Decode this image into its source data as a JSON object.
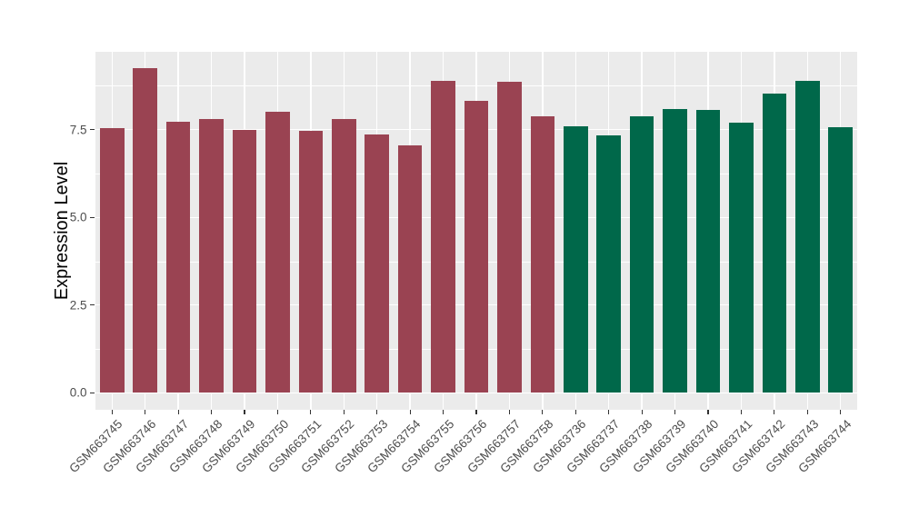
{
  "chart_data": {
    "type": "bar",
    "title": "",
    "xlabel": "",
    "ylabel": "Expression Level",
    "categories": [
      "GSM663745",
      "GSM663746",
      "GSM663747",
      "GSM663748",
      "GSM663749",
      "GSM663750",
      "GSM663751",
      "GSM663752",
      "GSM663753",
      "GSM663754",
      "GSM663755",
      "GSM663756",
      "GSM663757",
      "GSM663758",
      "GSM663736",
      "GSM663737",
      "GSM663738",
      "GSM663739",
      "GSM663740",
      "GSM663741",
      "GSM663742",
      "GSM663743",
      "GSM663744"
    ],
    "values": [
      7.55,
      9.26,
      7.72,
      7.81,
      7.49,
      8.02,
      7.46,
      7.8,
      7.37,
      7.04,
      8.88,
      8.33,
      8.86,
      7.89,
      7.6,
      7.33,
      7.88,
      8.08,
      8.06,
      7.71,
      8.53,
      8.89,
      7.57
    ],
    "groups": [
      "A",
      "A",
      "A",
      "A",
      "A",
      "A",
      "A",
      "A",
      "A",
      "A",
      "A",
      "A",
      "A",
      "A",
      "B",
      "B",
      "B",
      "B",
      "B",
      "B",
      "B",
      "B",
      "B"
    ],
    "group_colors": {
      "A": "#9A4352",
      "B": "#00684A"
    },
    "ylim": [
      -0.47,
      9.71
    ],
    "y_major_ticks": [
      0,
      2.5,
      5,
      7.5
    ],
    "y_minor_ticks": [
      1.25,
      3.75,
      6.25,
      8.75
    ],
    "y_tick_labels": [
      "0.0",
      "2.5",
      "5.0",
      "7.5"
    ],
    "grid": "on",
    "legend_position": "none",
    "bar_label_angle_deg": 45
  },
  "style_colors": {
    "panel_background": "#EBEBEB",
    "gridline": "#FFFFFF",
    "axis_text": "#4D4D4D",
    "axis_title": "#000000",
    "tick_mark": "#333333",
    "figure_background": "#FFFFFF"
  }
}
